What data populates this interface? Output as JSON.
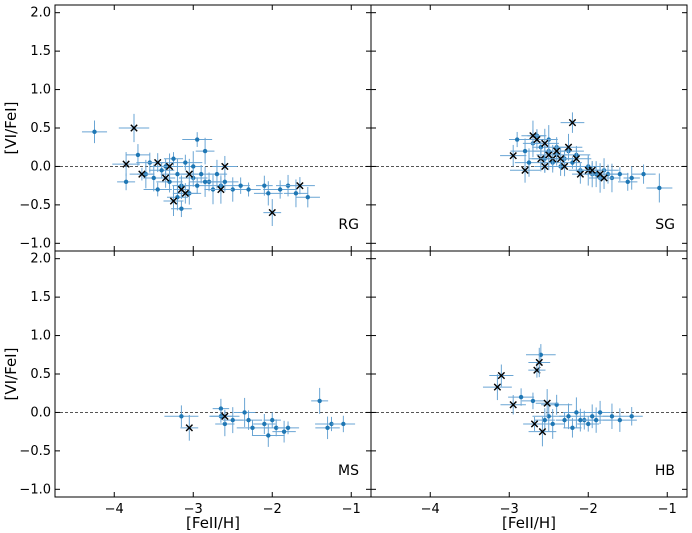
{
  "chart_data": {
    "type": "scatter",
    "xlabel": "[FeII/H]",
    "ylabel": "[VI/FeI]",
    "xlim": [
      -4.75,
      -0.75
    ],
    "ylim": [
      -1.1,
      2.1
    ],
    "xticks": [
      -4,
      -3,
      -2,
      -1
    ],
    "yticks": [
      -1.0,
      -0.5,
      0.0,
      0.5,
      1.0,
      1.5,
      2.0
    ],
    "x_tick_labels": [
      "−4",
      "−3",
      "−2",
      "−1"
    ],
    "y_tick_labels": [
      "−1.0",
      "−0.5",
      "0.0",
      "0.5",
      "1.0",
      "1.5",
      "2.0"
    ],
    "reference_line_y": 0.0,
    "colors": {
      "points": "#1f77b4",
      "errorbars": "#6aa5d4",
      "crosses": "#000000",
      "refline": "#555555"
    },
    "panels": [
      {
        "label": "RG",
        "points": [
          [
            -4.25,
            0.45
          ],
          [
            -3.85,
            -0.2
          ],
          [
            -3.7,
            0.15
          ],
          [
            -3.6,
            -0.1
          ],
          [
            -3.55,
            0.05
          ],
          [
            -3.5,
            -0.15
          ],
          [
            -3.45,
            -0.3
          ],
          [
            -3.4,
            -0.05
          ],
          [
            -3.35,
            0.0
          ],
          [
            -3.3,
            -0.2
          ],
          [
            -3.25,
            0.1
          ],
          [
            -3.2,
            -0.1
          ],
          [
            -3.15,
            -0.25
          ],
          [
            -3.1,
            0.05
          ],
          [
            -3.05,
            -0.35
          ],
          [
            -3.0,
            -0.15
          ],
          [
            -3.0,
            0.0
          ],
          [
            -2.95,
            -0.25
          ],
          [
            -2.9,
            -0.1
          ],
          [
            -2.85,
            0.2
          ],
          [
            -2.8,
            -0.2
          ],
          [
            -2.75,
            -0.3
          ],
          [
            -2.7,
            -0.1
          ],
          [
            -2.65,
            -0.25
          ],
          [
            -2.6,
            -0.2
          ],
          [
            -2.5,
            -0.3
          ],
          [
            -2.4,
            -0.25
          ],
          [
            -2.3,
            -0.3
          ],
          [
            -2.1,
            -0.25
          ],
          [
            -2.05,
            -0.35
          ],
          [
            -1.9,
            -0.3
          ],
          [
            -1.8,
            -0.25
          ],
          [
            -1.7,
            -0.35
          ],
          [
            -1.55,
            -0.4
          ],
          [
            -3.15,
            -0.55
          ],
          [
            -2.95,
            0.35
          ],
          [
            -3.2,
            -0.4
          ],
          [
            -2.85,
            -0.2
          ]
        ],
        "crosses": [
          [
            -3.75,
            0.5
          ],
          [
            -3.85,
            0.03
          ],
          [
            -3.65,
            -0.1
          ],
          [
            -3.45,
            0.05
          ],
          [
            -3.35,
            -0.15
          ],
          [
            -3.3,
            0.0
          ],
          [
            -3.25,
            -0.45
          ],
          [
            -3.15,
            -0.3
          ],
          [
            -3.1,
            -0.35
          ],
          [
            -3.05,
            -0.1
          ],
          [
            -2.65,
            -0.3
          ],
          [
            -2.6,
            0.0
          ],
          [
            -2.0,
            -0.6
          ],
          [
            -1.65,
            -0.25
          ]
        ]
      },
      {
        "label": "SG",
        "points": [
          [
            -2.9,
            0.35
          ],
          [
            -2.8,
            0.2
          ],
          [
            -2.75,
            0.05
          ],
          [
            -2.7,
            0.3
          ],
          [
            -2.65,
            0.4
          ],
          [
            -2.6,
            0.25
          ],
          [
            -2.55,
            0.1
          ],
          [
            -2.5,
            0.2
          ],
          [
            -2.45,
            0.05
          ],
          [
            -2.4,
            0.15
          ],
          [
            -2.35,
            0.0
          ],
          [
            -2.3,
            0.1
          ],
          [
            -2.25,
            0.2
          ],
          [
            -2.2,
            0.05
          ],
          [
            -2.15,
            0.15
          ],
          [
            -2.1,
            -0.05
          ],
          [
            -2.0,
            0.0
          ],
          [
            -1.95,
            -0.1
          ],
          [
            -1.9,
            -0.1
          ],
          [
            -1.85,
            -0.15
          ],
          [
            -1.8,
            -0.05
          ],
          [
            -1.75,
            -0.1
          ],
          [
            -1.7,
            -0.15
          ],
          [
            -1.6,
            -0.1
          ],
          [
            -1.5,
            -0.2
          ],
          [
            -1.45,
            -0.15
          ],
          [
            -1.3,
            -0.1
          ],
          [
            -1.1,
            -0.28
          ],
          [
            -2.4,
            0.25
          ],
          [
            -2.5,
            0.35
          ]
        ],
        "crosses": [
          [
            -2.95,
            0.14
          ],
          [
            -2.8,
            -0.05
          ],
          [
            -2.7,
            0.4
          ],
          [
            -2.65,
            0.35
          ],
          [
            -2.6,
            0.1
          ],
          [
            -2.55,
            0.3
          ],
          [
            -2.5,
            0.15
          ],
          [
            -2.45,
            0.1
          ],
          [
            -2.4,
            0.2
          ],
          [
            -2.35,
            0.1
          ],
          [
            -2.3,
            0.0
          ],
          [
            -2.25,
            0.25
          ],
          [
            -2.2,
            0.57
          ],
          [
            -2.15,
            0.1
          ],
          [
            -2.1,
            -0.1
          ],
          [
            -2.0,
            -0.05
          ],
          [
            -1.95,
            -0.05
          ],
          [
            -1.85,
            -0.1
          ],
          [
            -1.8,
            -0.15
          ],
          [
            -2.55,
            0.0
          ]
        ]
      },
      {
        "label": "MS",
        "points": [
          [
            -3.15,
            -0.05
          ],
          [
            -2.65,
            0.05
          ],
          [
            -2.6,
            -0.15
          ],
          [
            -2.5,
            -0.1
          ],
          [
            -2.35,
            0.0
          ],
          [
            -2.3,
            -0.1
          ],
          [
            -2.25,
            -0.2
          ],
          [
            -2.1,
            -0.15
          ],
          [
            -2.05,
            -0.3
          ],
          [
            -2.0,
            -0.1
          ],
          [
            -1.95,
            -0.2
          ],
          [
            -1.85,
            -0.25
          ],
          [
            -1.8,
            -0.2
          ],
          [
            -1.4,
            0.15
          ],
          [
            -1.3,
            -0.2
          ],
          [
            -1.25,
            -0.15
          ],
          [
            -1.1,
            -0.15
          ],
          [
            -2.65,
            -0.05
          ]
        ],
        "crosses": [
          [
            -3.05,
            -0.2
          ],
          [
            -2.6,
            -0.05
          ]
        ]
      },
      {
        "label": "HB",
        "points": [
          [
            -2.85,
            0.2
          ],
          [
            -2.7,
            0.15
          ],
          [
            -2.6,
            0.75
          ],
          [
            -2.55,
            -0.1
          ],
          [
            -2.5,
            -0.05
          ],
          [
            -2.45,
            -0.15
          ],
          [
            -2.4,
            0.1
          ],
          [
            -2.3,
            -0.1
          ],
          [
            -2.25,
            -0.05
          ],
          [
            -2.15,
            0.0
          ],
          [
            -2.05,
            -0.1
          ],
          [
            -2.0,
            -0.15
          ],
          [
            -1.95,
            -0.05
          ],
          [
            -1.9,
            -0.1
          ],
          [
            -1.85,
            0.0
          ],
          [
            -1.7,
            -0.05
          ],
          [
            -1.6,
            -0.1
          ],
          [
            -1.45,
            -0.05
          ],
          [
            -2.1,
            -0.1
          ],
          [
            -2.2,
            -0.2
          ]
        ],
        "crosses": [
          [
            -3.15,
            0.33
          ],
          [
            -3.1,
            0.48
          ],
          [
            -2.95,
            0.1
          ],
          [
            -2.65,
            0.55
          ],
          [
            -2.62,
            0.65
          ],
          [
            -2.58,
            -0.25
          ],
          [
            -2.52,
            0.12
          ],
          [
            -2.68,
            -0.15
          ]
        ]
      }
    ]
  }
}
